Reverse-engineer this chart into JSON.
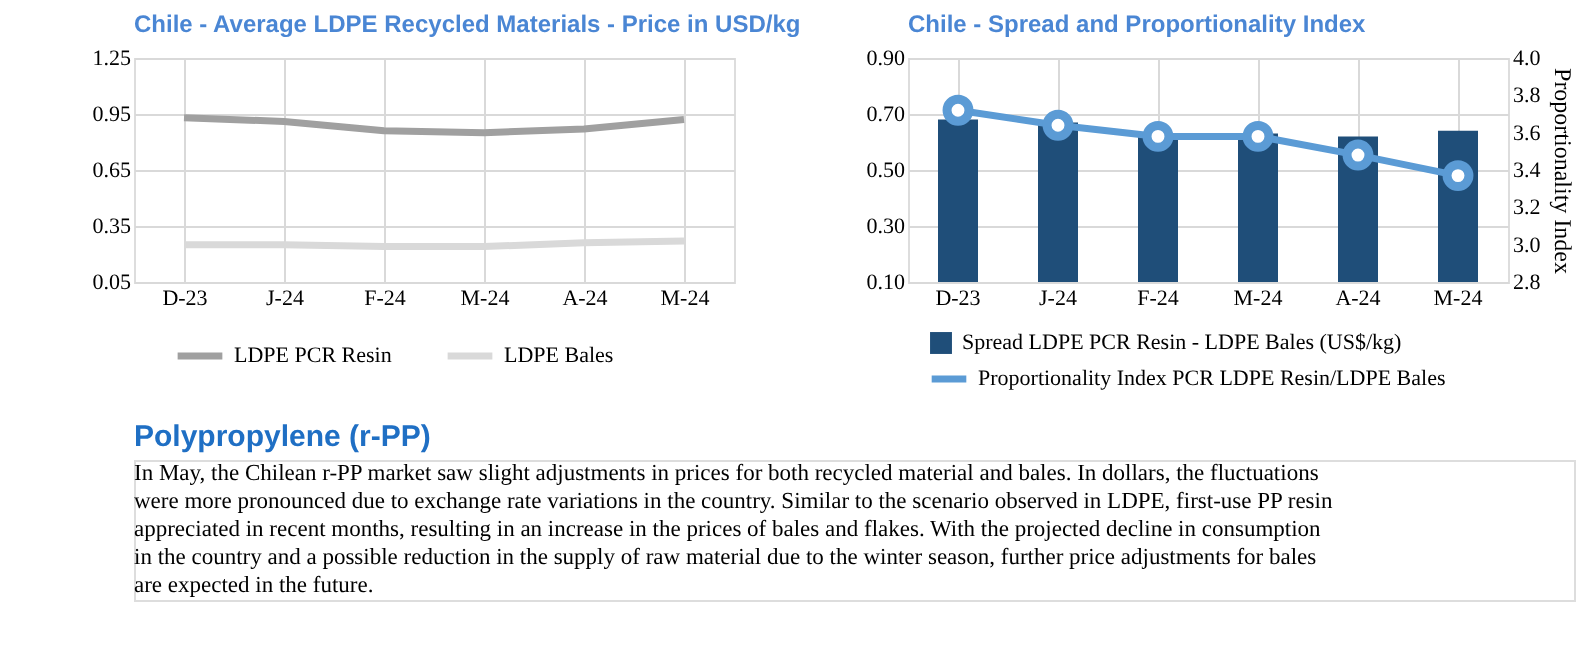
{
  "chart_data": [
    {
      "type": "line",
      "title": "Chile - Average LDPE Recycled Materials - Price in USD/kg",
      "categories": [
        "D-23",
        "J-24",
        "F-24",
        "M-24",
        "A-24",
        "M-24"
      ],
      "series": [
        {
          "name": "LDPE PCR Resin",
          "color": "#a0a0a0",
          "values": [
            0.93,
            0.91,
            0.86,
            0.85,
            0.87,
            0.92
          ]
        },
        {
          "name": "LDPE Bales",
          "color": "#d9d9d9",
          "values": [
            0.25,
            0.25,
            0.24,
            0.24,
            0.26,
            0.27
          ]
        }
      ],
      "ylim": [
        0.05,
        1.25
      ],
      "yticks": [
        0.05,
        0.35,
        0.65,
        0.95,
        1.25
      ],
      "grid": true,
      "legend": "bottom",
      "marker": "none",
      "line_style": "solid"
    },
    {
      "type": "bar",
      "title": "Chile - Spread and Proportionality Index",
      "categories": [
        "D-23",
        "J-24",
        "F-24",
        "M-24",
        "A-24",
        "M-24"
      ],
      "y2label": "Proportionality Index",
      "series": [
        {
          "name": "Spread LDPE PCR Resin - LDPE Bales (US$/kg)",
          "color": "#1f4e79",
          "values": [
            0.68,
            0.67,
            0.62,
            0.63,
            0.62,
            0.64
          ]
        },
        {
          "name": "Proportionality Index PCR LDPE Resin/LDPE Bales",
          "type": "line",
          "axis": "y2",
          "marker": "circle",
          "color": "#5b9bd5",
          "values": [
            3.72,
            3.64,
            3.58,
            3.58,
            3.48,
            3.37
          ]
        }
      ],
      "ylim": [
        0.1,
        0.9
      ],
      "yticks": [
        {
          "value": 0.1,
          "label": "0.10"
        },
        {
          "value": 0.3,
          "label": "0.30"
        },
        {
          "value": 0.5,
          "label": "0.50"
        },
        {
          "value": 0.7,
          "label": "0.70"
        },
        {
          "value": 0.9,
          "label": "0.90"
        }
      ],
      "y2lim": [
        2.8,
        4.0
      ],
      "y2ticks": [
        2.8,
        {
          "value": 3.0,
          "label": "3.0"
        },
        3.2,
        3.4,
        3.6,
        3.8,
        {
          "value": 4.0,
          "label": "4.0"
        }
      ],
      "grid": true,
      "legend": "bottom"
    },
    {
      "type": "other",
      "title": "Polypropylene (r-PP)",
      "annotations": [
        "In May, the Chilean r-PP market saw slight adjustments in prices for both recycled material and bales. In dollars, the fluctuations",
        "were more pronounced due to exchange rate variations in the country. Similar to the scenario observed in LDPE, first-use PP resin",
        "appreciated in recent months, resulting in an increase in the prices of bales and flakes. With the projected decline in consumption",
        "in the country and a possible reduction in the supply of raw material due to the winter season, further price adjustments for bales",
        "are expected in the future."
      ]
    }
  ]
}
